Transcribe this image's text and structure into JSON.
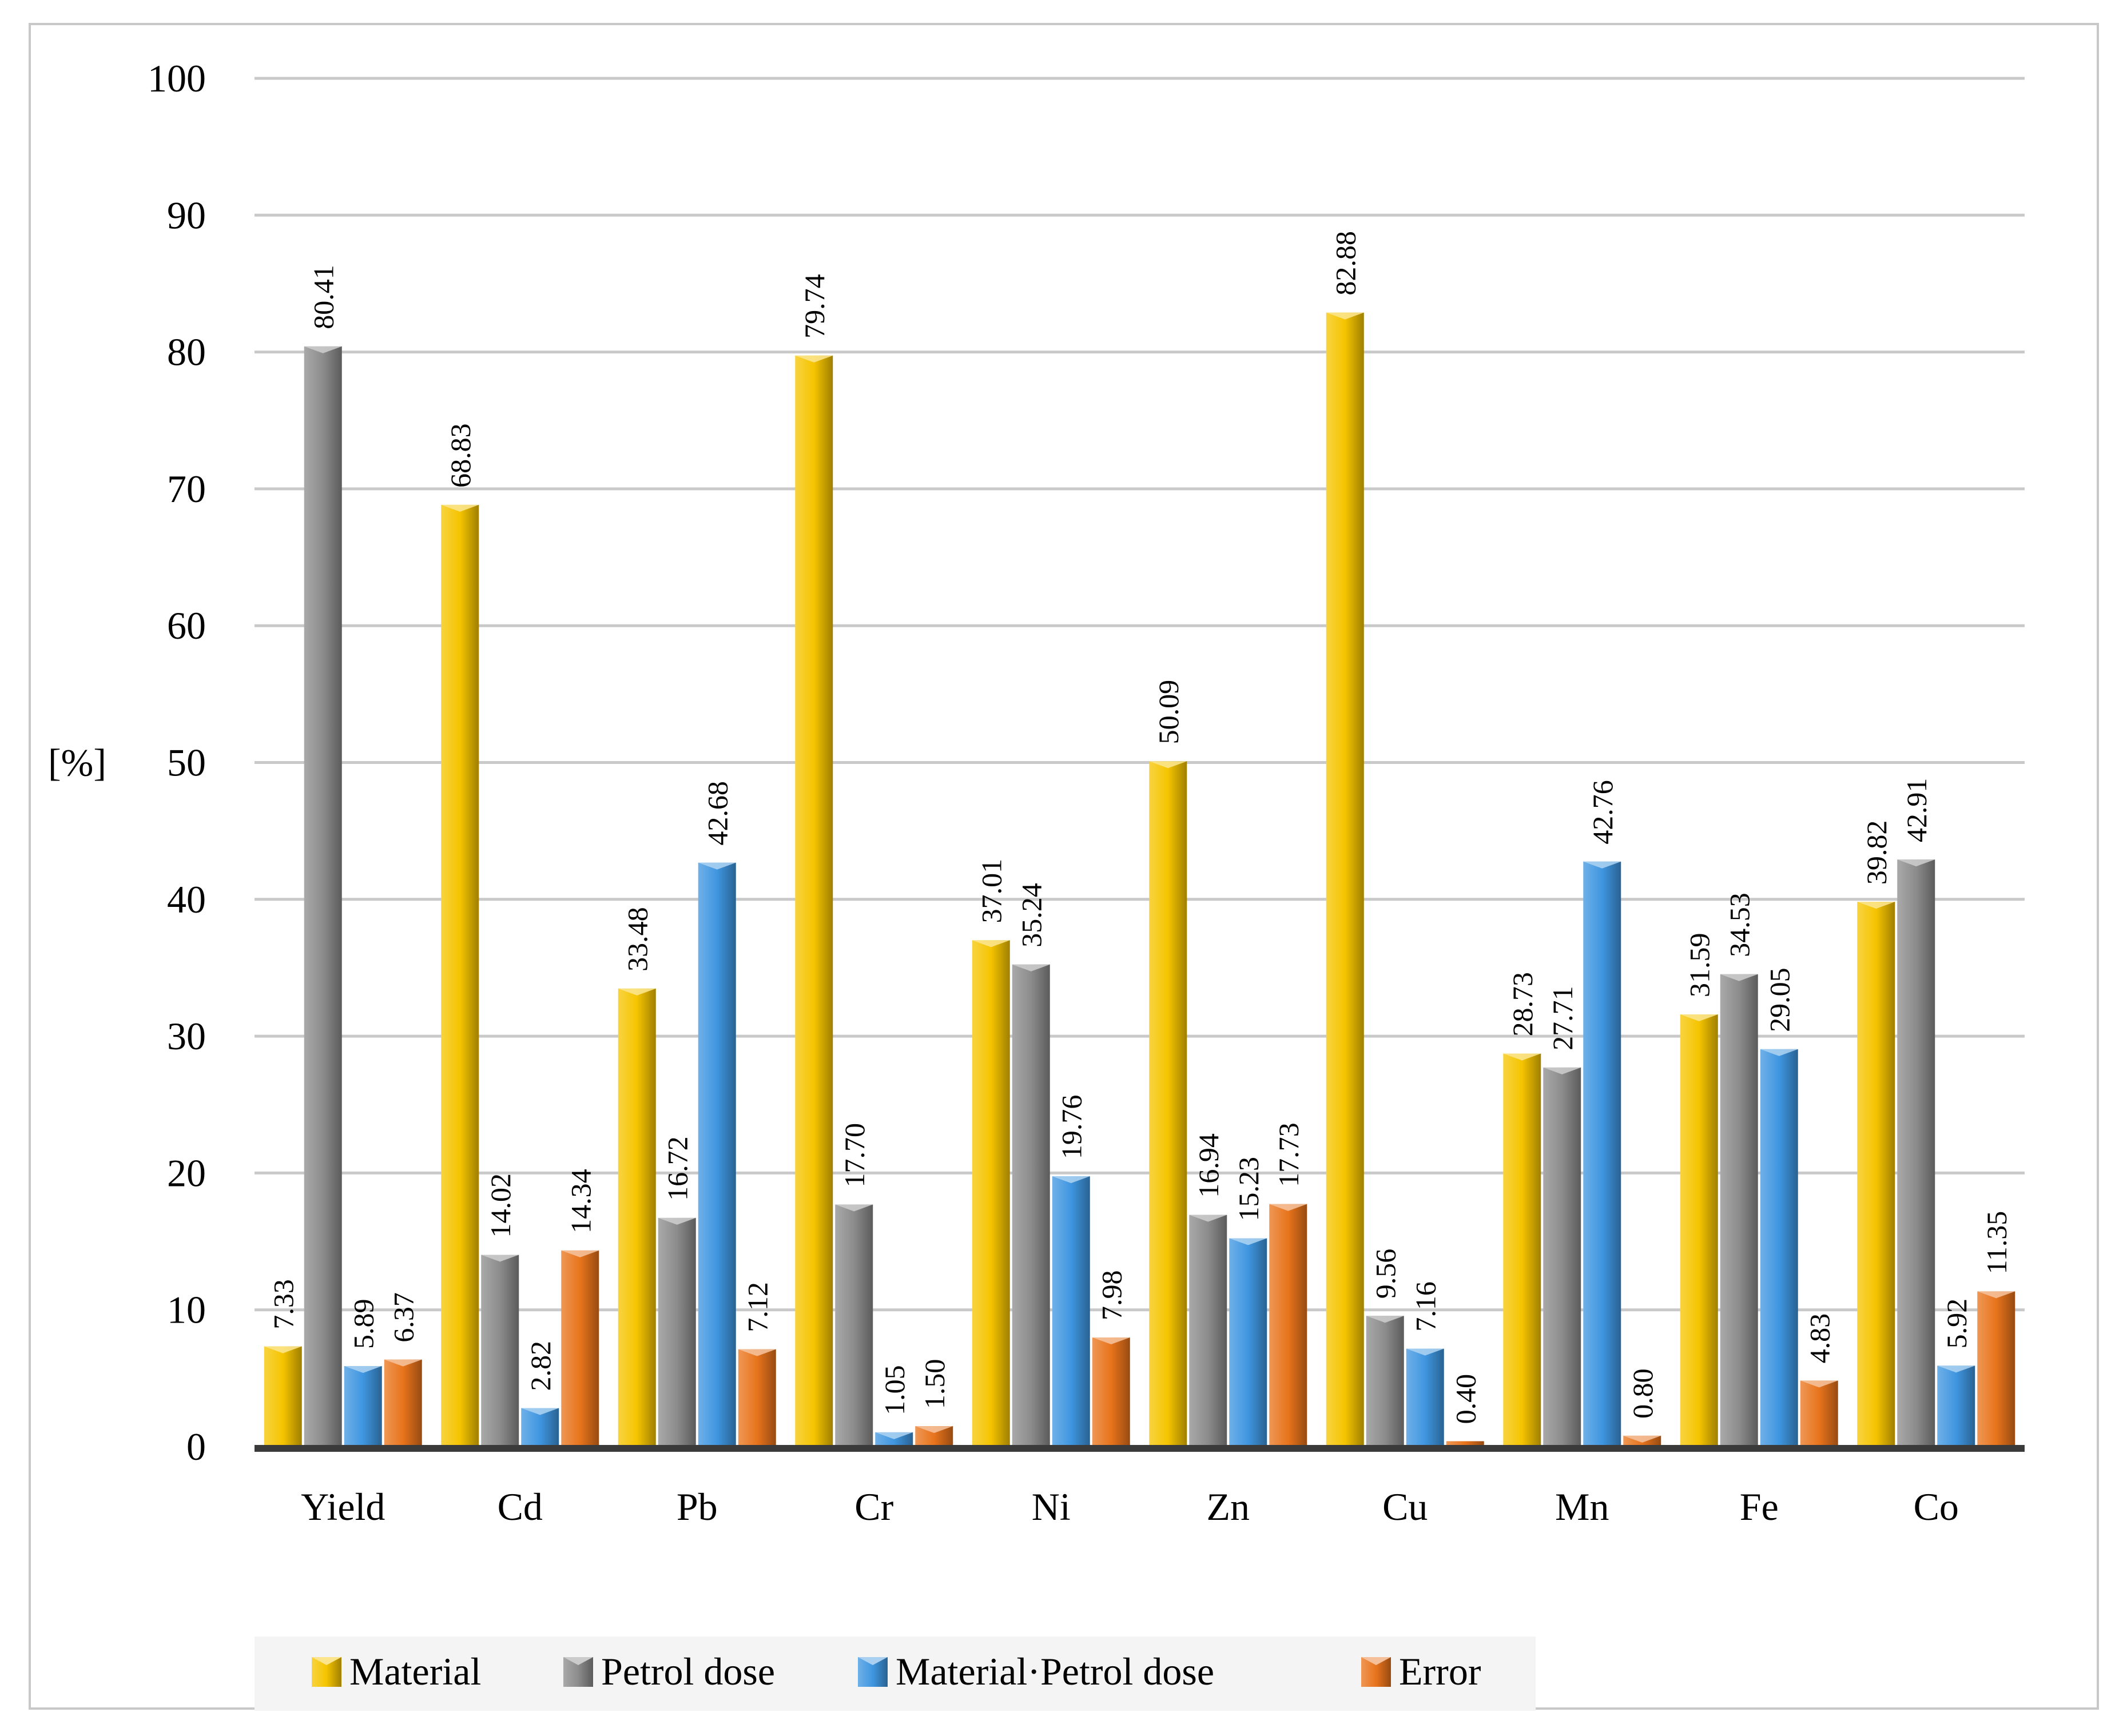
{
  "chart_data": {
    "type": "bar",
    "title": "",
    "xlabel": "",
    "ylabel": "[%]",
    "ylim": [
      0,
      100
    ],
    "yticks": [
      0,
      10,
      20,
      30,
      40,
      50,
      60,
      70,
      80,
      90,
      100
    ],
    "grid": true,
    "legend_position": "bottom",
    "categories": [
      "Yield",
      "Cd",
      "Pb",
      "Cr",
      "Ni",
      "Zn",
      "Cu",
      "Mn",
      "Fe",
      "Co"
    ],
    "series": [
      {
        "name": "Material",
        "color": "#f5c400",
        "values": [
          7.33,
          68.83,
          33.48,
          79.74,
          37.01,
          50.09,
          82.88,
          28.73,
          31.59,
          39.82
        ],
        "labels": [
          "7.33",
          "68.83",
          "33.48",
          "79.74",
          "37.01",
          "50.09",
          "82.88",
          "28.73",
          "31.59",
          "39.82"
        ]
      },
      {
        "name": "Petrol dose",
        "color": "#8c8c8c",
        "values": [
          80.41,
          14.02,
          16.72,
          17.7,
          35.24,
          16.94,
          9.56,
          27.71,
          34.53,
          42.91
        ],
        "labels": [
          "80.41",
          "14.02",
          "16.72",
          "17.70",
          "35.24",
          "16.94",
          "9.56",
          "27.71",
          "34.53",
          "42.91"
        ]
      },
      {
        "name": "Material·Petrol dose",
        "color": "#3f96e0",
        "values": [
          5.89,
          2.82,
          42.68,
          1.05,
          19.76,
          15.23,
          7.16,
          42.76,
          29.05,
          5.92
        ],
        "labels": [
          "5.89",
          "2.82",
          "42.68",
          "1.05",
          "19.76",
          "15.23",
          "7.16",
          "42.76",
          "29.05",
          "5.92"
        ]
      },
      {
        "name": "Error",
        "color": "#e8741c",
        "values": [
          6.37,
          14.34,
          7.12,
          1.5,
          7.98,
          17.73,
          0.4,
          0.8,
          4.83,
          11.35
        ],
        "labels": [
          "6.37",
          "14.34",
          "7.12",
          "1.50",
          "7.98",
          "17.73",
          "0.40",
          "0.80",
          "4.83",
          "11.35"
        ]
      }
    ]
  }
}
